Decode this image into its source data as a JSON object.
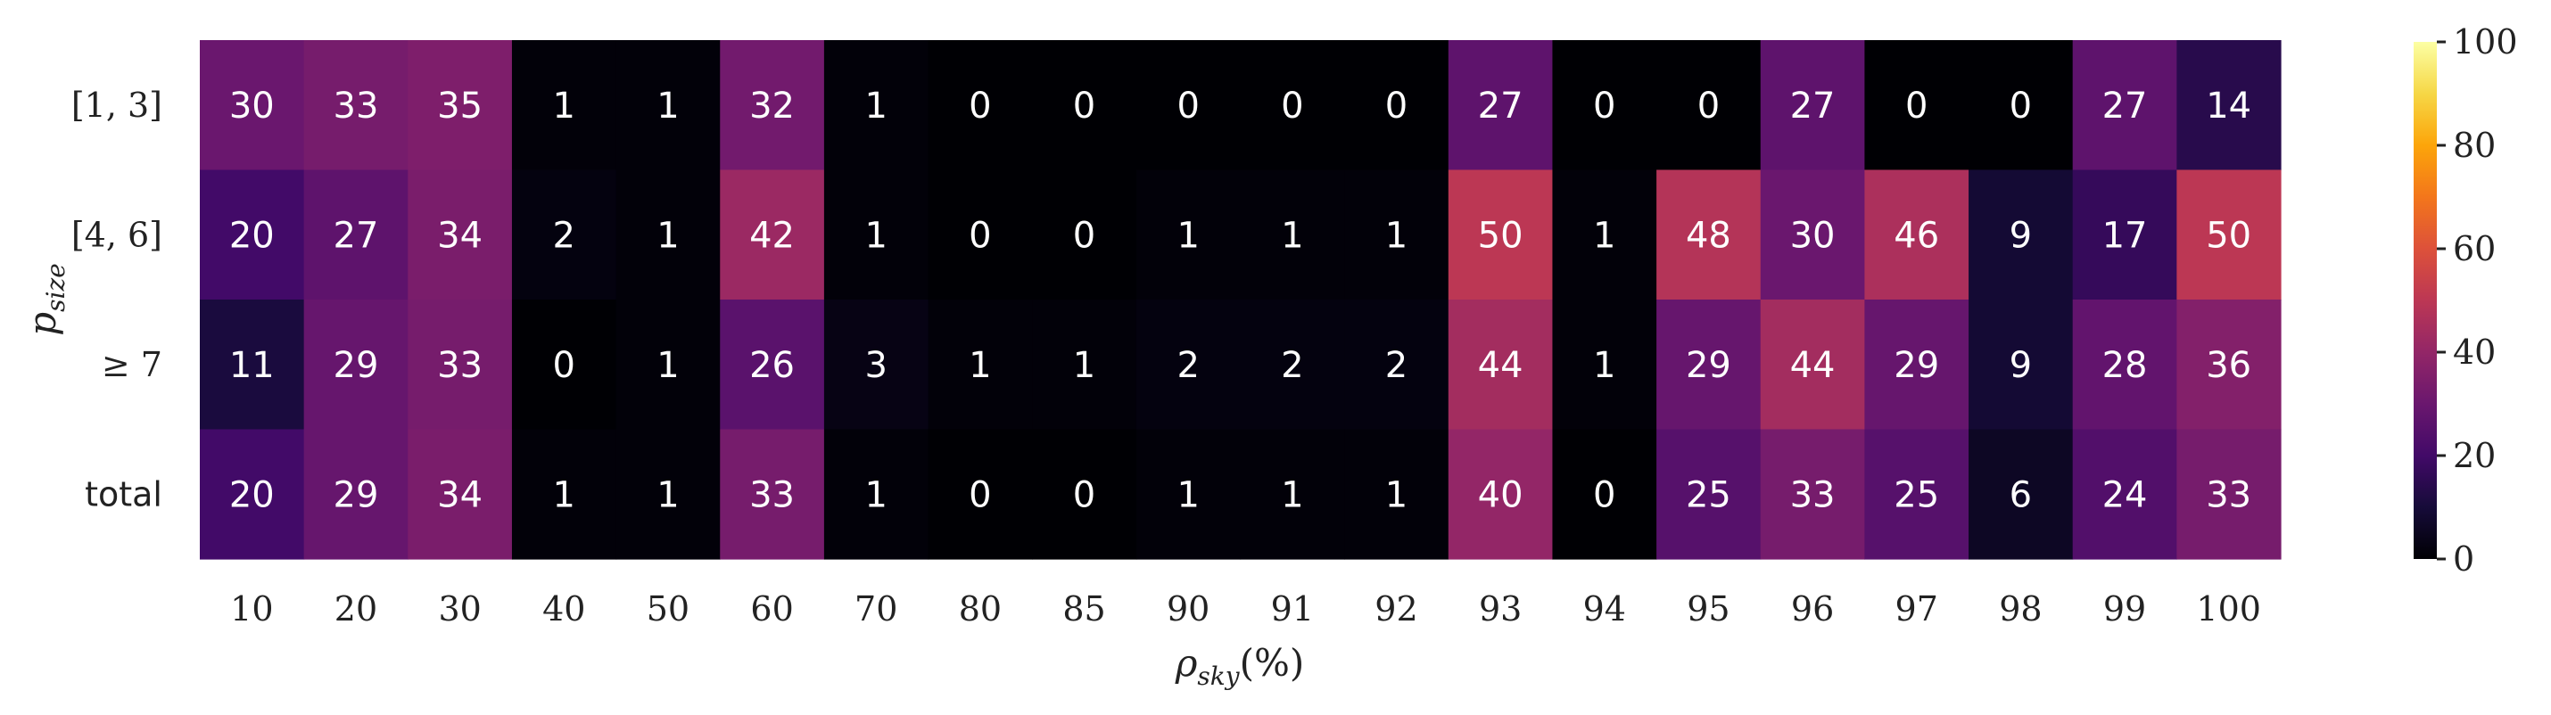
{
  "chart_data": {
    "type": "heatmap",
    "xlabel": "ρ_sky(%)",
    "ylabel": "p_size",
    "x_categories": [
      "10",
      "20",
      "30",
      "40",
      "50",
      "60",
      "70",
      "80",
      "85",
      "90",
      "91",
      "92",
      "93",
      "94",
      "95",
      "96",
      "97",
      "98",
      "99",
      "100"
    ],
    "y_categories": [
      "[1, 3]",
      "[4, 6]",
      "≥ 7",
      "total"
    ],
    "values": [
      [
        30,
        33,
        35,
        1,
        1,
        32,
        1,
        0,
        0,
        0,
        0,
        0,
        27,
        0,
        0,
        27,
        0,
        0,
        27,
        14
      ],
      [
        20,
        27,
        34,
        2,
        1,
        42,
        1,
        0,
        0,
        1,
        1,
        1,
        50,
        1,
        48,
        30,
        46,
        9,
        17,
        50
      ],
      [
        11,
        29,
        33,
        0,
        1,
        26,
        3,
        1,
        1,
        2,
        2,
        2,
        44,
        1,
        29,
        44,
        29,
        9,
        28,
        36
      ],
      [
        20,
        29,
        34,
        1,
        1,
        33,
        1,
        0,
        0,
        1,
        1,
        1,
        40,
        0,
        25,
        33,
        25,
        6,
        24,
        33
      ]
    ],
    "colorbar": {
      "range": [
        0,
        100
      ],
      "ticks": [
        "0",
        "20",
        "40",
        "60",
        "80",
        "100"
      ],
      "colormap": "inferno"
    }
  }
}
